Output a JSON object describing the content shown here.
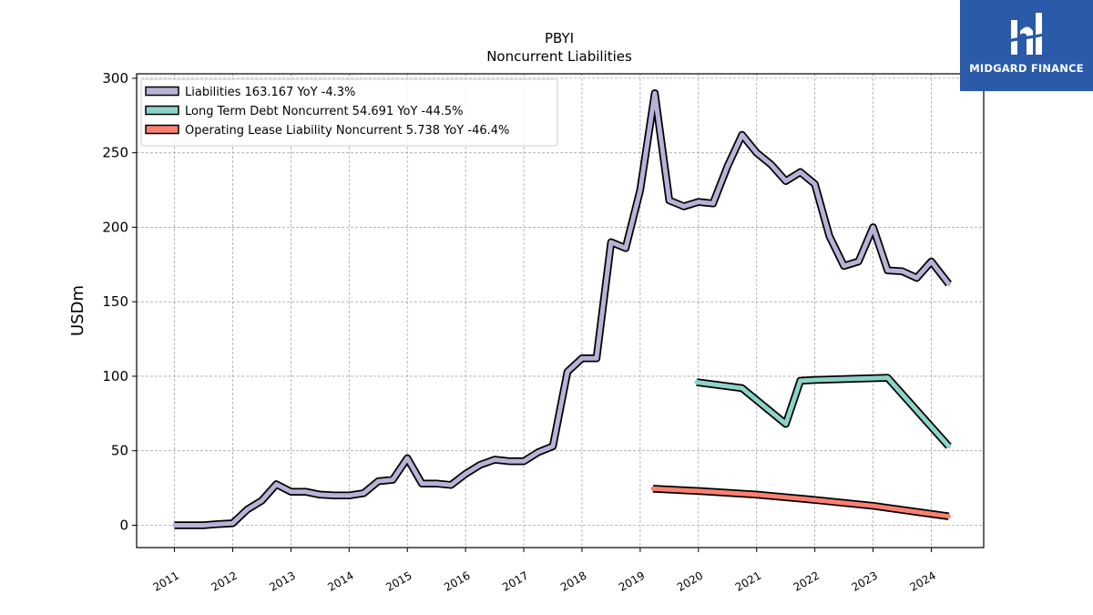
{
  "chart_data": {
    "type": "line",
    "title": "PBYI",
    "subtitle": "Noncurrent  Liabilities",
    "ylabel": "USDm",
    "xlabel": "",
    "ylim": [
      -15,
      303
    ],
    "xlim": [
      2010.35,
      2024.9
    ],
    "yticks": [
      0,
      50,
      100,
      150,
      200,
      250,
      300
    ],
    "xticks": [
      "2011",
      "2012",
      "2013",
      "2014",
      "2015",
      "2016",
      "2017",
      "2018",
      "2019",
      "2020",
      "2021",
      "2022",
      "2023",
      "2024"
    ],
    "grid": true,
    "legend_position": "top-left",
    "series": [
      {
        "name": "Liabilities",
        "legend": "Liabilities  163.167 YoY -4.3%",
        "color": "#b7b3d7",
        "x": [
          2011.0,
          2011.25,
          2011.5,
          2011.75,
          2012.0,
          2012.25,
          2012.5,
          2012.75,
          2013.0,
          2013.25,
          2013.5,
          2013.75,
          2014.0,
          2014.25,
          2014.5,
          2014.75,
          2015.0,
          2015.25,
          2015.5,
          2015.75,
          2016.0,
          2016.25,
          2016.5,
          2016.75,
          2017.0,
          2017.25,
          2017.5,
          2017.75,
          2018.0,
          2018.25,
          2018.5,
          2018.75,
          2019.0,
          2019.25,
          2019.5,
          2019.75,
          2020.0,
          2020.25,
          2020.5,
          2020.75,
          2021.0,
          2021.25,
          2021.5,
          2021.75,
          2022.0,
          2022.25,
          2022.5,
          2022.75,
          2023.0,
          2023.25,
          2023.5,
          2023.75,
          2024.0,
          2024.3
        ],
        "values": [
          0,
          0,
          0,
          0.8,
          1.3,
          10.5,
          16.5,
          27.5,
          22.5,
          22.5,
          20.5,
          20,
          20,
          21.5,
          29.5,
          30.5,
          45,
          28,
          28,
          27,
          34.5,
          40.5,
          44,
          43,
          43,
          49,
          53,
          103,
          112,
          112,
          190,
          186,
          225,
          290,
          218,
          214,
          217,
          216,
          241,
          262,
          250,
          242,
          231,
          237,
          229,
          194,
          174,
          177,
          200,
          171,
          170.5,
          166,
          177,
          162
        ]
      },
      {
        "name": "Long Term Debt Noncurrent",
        "legend": "Long Term Debt Noncurrent  54.691 YoY -44.5%",
        "color": "#8dd3c7",
        "x": [
          2019.97,
          2020.75,
          2021.5,
          2021.75,
          2022.0,
          2023.25,
          2024.3
        ],
        "values": [
          96,
          92,
          68,
          97,
          97.5,
          99,
          53
        ]
      },
      {
        "name": "Operating Lease Liability Noncurrent",
        "legend": "Operating Lease Liability Noncurrent  5.738 YoY -46.4%",
        "color": "#fb8072",
        "x": [
          2019.22,
          2020.0,
          2021.0,
          2022.0,
          2023.0,
          2024.3
        ],
        "values": [
          24.5,
          23,
          20.5,
          17,
          13,
          6
        ]
      }
    ]
  },
  "logo": {
    "text": "MIDGARD FINANCE",
    "color": "#2a5aa8"
  }
}
